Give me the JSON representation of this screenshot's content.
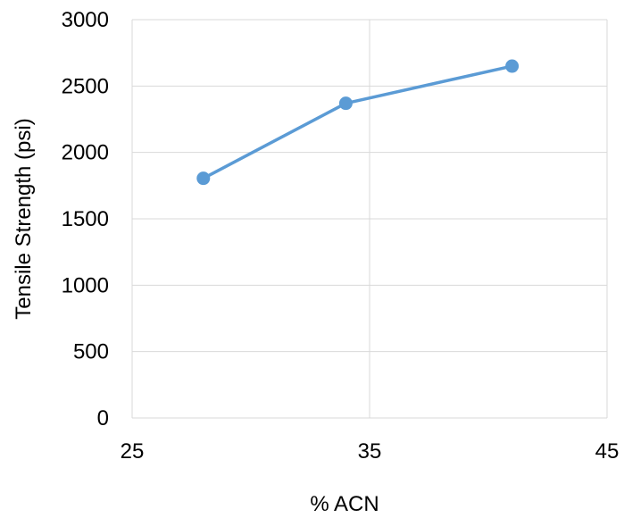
{
  "chart_data": {
    "type": "scatter",
    "title": "",
    "xlabel": "% ACN",
    "ylabel": "Tensile Strength (psi)",
    "xlim": [
      25,
      45
    ],
    "ylim": [
      0,
      3000
    ],
    "x_ticks": [
      25,
      35,
      45
    ],
    "y_ticks": [
      0,
      500,
      1000,
      1500,
      2000,
      2500,
      3000
    ],
    "grid": true,
    "legend": "none",
    "series": [
      {
        "x": [
          28,
          34,
          41
        ],
        "y": [
          1805,
          2370,
          2650
        ],
        "color": "#5B9BD5",
        "line": true,
        "marker": "circle"
      }
    ]
  }
}
